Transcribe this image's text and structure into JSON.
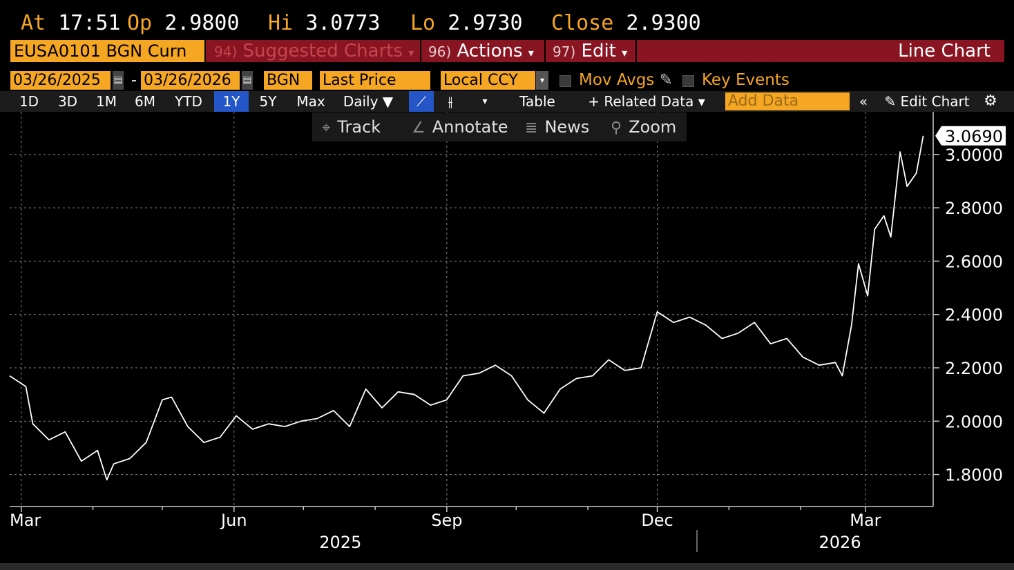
{
  "quote": {
    "at_label": "At",
    "at_value": "17:51",
    "op_label": "Op",
    "op_value": "2.9800",
    "hi_label": "Hi",
    "hi_value": "3.0773",
    "lo_label": "Lo",
    "lo_value": "2.9730",
    "close_label": "Close",
    "close_value": "2.9300"
  },
  "header": {
    "ticker": "EUSA0101 BGN Curn",
    "menus": [
      {
        "num": "94)",
        "label": "Suggested Charts",
        "caret": "▾"
      },
      {
        "num": "96)",
        "label": "Actions",
        "caret": "▾"
      },
      {
        "num": "97)",
        "label": "Edit",
        "caret": "▾"
      }
    ],
    "title": "Line Chart"
  },
  "settings": {
    "start_date": "03/26/2025",
    "dash": "-",
    "end_date": "03/26/2026",
    "source": "BGN",
    "field": "Last Price",
    "currency": "Local CCY",
    "mov_avgs": "Mov Avgs",
    "key_events": "Key Events"
  },
  "ranges": {
    "buttons": [
      "1D",
      "3D",
      "1M",
      "6M",
      "YTD",
      "1Y",
      "5Y",
      "Max"
    ],
    "active": "1Y",
    "frequency": "Daily ▼",
    "table": "Table",
    "related": "+ Related Data ▾",
    "add_data_placeholder": "Add Data",
    "edit_chart": "Edit Chart"
  },
  "toolbar": {
    "track": "Track",
    "annotate": "Annotate",
    "news": "News",
    "zoom": "Zoom"
  },
  "colors": {
    "accent": "#f5a623",
    "redbar": "#8a1522",
    "active": "#2456c7",
    "line": "#ffffff"
  },
  "chart_data": {
    "type": "line",
    "ylim": [
      1.68,
      3.16
    ],
    "y_ticks": [
      "1.8000",
      "2.0000",
      "2.2000",
      "2.4000",
      "2.6000",
      "2.8000",
      "3.0000"
    ],
    "y_tick_values": [
      1.8,
      2.0,
      2.2,
      2.4,
      2.6,
      2.8,
      3.0
    ],
    "x_month_labels": [
      {
        "label": "Mar",
        "date": "2025-03-01"
      },
      {
        "label": "Jun",
        "date": "2025-06-01"
      },
      {
        "label": "Sep",
        "date": "2025-09-01"
      },
      {
        "label": "Dec",
        "date": "2025-12-01"
      },
      {
        "label": "Mar",
        "date": "2026-03-01"
      }
    ],
    "x_year_labels": [
      {
        "label": "2025",
        "date": "2025-07-17"
      },
      {
        "label": "2026",
        "date": "2026-02-18"
      }
    ],
    "x_start": "2025-02-24",
    "x_end": "2026-03-30",
    "last_value_label": "3.0690",
    "grid": true,
    "series": [
      {
        "x": [
          "2025-02-24",
          "2025-03-03",
          "2025-03-06",
          "2025-03-13",
          "2025-03-20",
          "2025-03-27",
          "2025-04-03",
          "2025-04-07",
          "2025-04-10",
          "2025-04-17",
          "2025-04-24",
          "2025-05-01",
          "2025-05-05",
          "2025-05-12",
          "2025-05-19",
          "2025-05-26",
          "2025-06-02",
          "2025-06-09",
          "2025-06-16",
          "2025-06-23",
          "2025-06-30",
          "2025-07-07",
          "2025-07-14",
          "2025-07-21",
          "2025-07-28",
          "2025-08-04",
          "2025-08-11",
          "2025-08-18",
          "2025-08-25",
          "2025-09-01",
          "2025-09-08",
          "2025-09-15",
          "2025-09-22",
          "2025-09-29",
          "2025-10-06",
          "2025-10-13",
          "2025-10-20",
          "2025-10-27",
          "2025-11-03",
          "2025-11-10",
          "2025-11-17",
          "2025-11-24",
          "2025-12-01",
          "2025-12-08",
          "2025-12-15",
          "2025-12-22",
          "2025-12-29",
          "2026-01-05",
          "2026-01-12",
          "2026-01-19",
          "2026-01-26",
          "2026-02-02",
          "2026-02-09",
          "2026-02-16",
          "2026-02-19",
          "2026-02-23",
          "2026-02-26",
          "2026-03-02",
          "2026-03-05",
          "2026-03-09",
          "2026-03-12",
          "2026-03-16",
          "2026-03-19",
          "2026-03-23",
          "2026-03-26"
        ],
        "values": [
          2.17,
          2.13,
          1.99,
          1.93,
          1.96,
          1.85,
          1.89,
          1.78,
          1.84,
          1.86,
          1.92,
          2.08,
          2.09,
          1.98,
          1.92,
          1.94,
          2.02,
          1.97,
          1.99,
          1.98,
          2.0,
          2.01,
          2.04,
          1.98,
          2.12,
          2.05,
          2.11,
          2.1,
          2.06,
          2.08,
          2.17,
          2.18,
          2.21,
          2.17,
          2.08,
          2.03,
          2.12,
          2.16,
          2.17,
          2.23,
          2.19,
          2.2,
          2.41,
          2.37,
          2.39,
          2.36,
          2.31,
          2.33,
          2.37,
          2.29,
          2.31,
          2.24,
          2.21,
          2.22,
          2.17,
          2.36,
          2.59,
          2.47,
          2.72,
          2.77,
          2.69,
          3.01,
          2.88,
          2.93,
          3.07
        ]
      }
    ]
  }
}
